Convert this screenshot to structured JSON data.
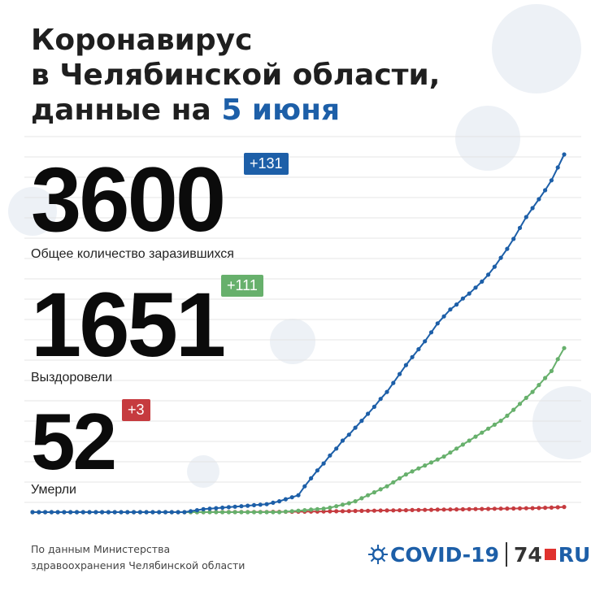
{
  "title": {
    "line1": "Коронавирус",
    "line2": "в Челябинской области,",
    "line3_prefix": "данные на ",
    "line3_date": "5 июня"
  },
  "stats": {
    "infected": {
      "value": "3600",
      "delta": "+131",
      "label": "Общее количество заразившихся",
      "color": "#1d5fa8"
    },
    "recovered": {
      "value": "1651",
      "delta": "+111",
      "label": "Выздоровели",
      "color": "#67b06c"
    },
    "deaths": {
      "value": "52",
      "delta": "+3",
      "label": "Умерли",
      "color": "#c63b3f"
    }
  },
  "footer": {
    "source_line1": "По данным Министерства",
    "source_line2": "здравоохранения Челябинской области",
    "brand_covid": "COVID-19",
    "brand_74": "74",
    "brand_ru": "RU"
  },
  "chart_data": {
    "type": "line",
    "title": "",
    "xlabel": "",
    "ylabel": "",
    "ylim": [
      0,
      3600
    ],
    "grid": true,
    "series": [
      {
        "name": "Общее количество заразившихся",
        "color": "#1d5fa8",
        "values": [
          0,
          0,
          0,
          0,
          0,
          0,
          0,
          0,
          0,
          0,
          0,
          0,
          0,
          0,
          0,
          0,
          0,
          0,
          0,
          0,
          0,
          0,
          0,
          0,
          0,
          10,
          20,
          30,
          35,
          40,
          45,
          50,
          55,
          60,
          65,
          70,
          75,
          80,
          95,
          110,
          130,
          150,
          170,
          260,
          340,
          420,
          490,
          570,
          640,
          720,
          780,
          850,
          920,
          990,
          1060,
          1140,
          1210,
          1300,
          1390,
          1480,
          1560,
          1640,
          1720,
          1810,
          1900,
          1970,
          2040,
          2090,
          2150,
          2200,
          2260,
          2320,
          2390,
          2470,
          2560,
          2650,
          2750,
          2860,
          2970,
          3060,
          3150,
          3240,
          3340,
          3469,
          3600
        ]
      },
      {
        "name": "Выздоровели",
        "color": "#67b06c",
        "values": [
          0,
          0,
          0,
          0,
          0,
          0,
          0,
          0,
          0,
          0,
          0,
          0,
          0,
          0,
          0,
          0,
          0,
          0,
          0,
          0,
          0,
          0,
          0,
          0,
          0,
          0,
          0,
          0,
          0,
          0,
          0,
          0,
          0,
          0,
          0,
          0,
          0,
          0,
          0,
          0,
          5,
          10,
          15,
          20,
          25,
          30,
          35,
          45,
          60,
          75,
          90,
          110,
          140,
          170,
          200,
          230,
          260,
          300,
          340,
          380,
          410,
          440,
          470,
          500,
          530,
          560,
          600,
          640,
          680,
          720,
          760,
          800,
          840,
          880,
          920,
          970,
          1030,
          1090,
          1150,
          1210,
          1280,
          1350,
          1420,
          1540,
          1651
        ]
      },
      {
        "name": "Умерли",
        "color": "#c63b3f",
        "values": [
          0,
          0,
          0,
          0,
          0,
          0,
          0,
          0,
          0,
          0,
          0,
          0,
          0,
          0,
          0,
          0,
          0,
          0,
          0,
          0,
          0,
          0,
          0,
          0,
          0,
          0,
          0,
          0,
          1,
          1,
          1,
          1,
          1,
          1,
          1,
          2,
          2,
          2,
          3,
          3,
          4,
          4,
          5,
          5,
          6,
          6,
          7,
          8,
          9,
          10,
          11,
          12,
          13,
          14,
          15,
          16,
          17,
          18,
          19,
          20,
          21,
          22,
          23,
          24,
          25,
          26,
          27,
          28,
          29,
          30,
          31,
          32,
          33,
          34,
          35,
          36,
          37,
          38,
          39,
          40,
          42,
          44,
          46,
          49,
          52
        ]
      }
    ]
  }
}
